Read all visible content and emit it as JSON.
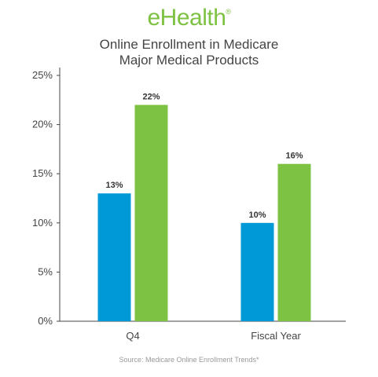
{
  "logo": {
    "text": "eHealth",
    "mark": "®",
    "color": "#7dc242"
  },
  "chart_data": {
    "type": "bar",
    "title": [
      "Online Enrollment in Medicare",
      "Major Medical Products"
    ],
    "categories": [
      "Q4",
      "Fiscal Year"
    ],
    "series": [
      {
        "values": [
          13,
          10
        ],
        "labels": [
          "13%",
          "10%"
        ],
        "color": "#0099d8"
      },
      {
        "values": [
          22,
          16
        ],
        "labels": [
          "22%",
          "16%"
        ],
        "color": "#7dc242"
      }
    ],
    "ylim": [
      0,
      25
    ],
    "yticks": [
      0,
      5,
      10,
      15,
      20,
      25
    ],
    "ytick_labels": [
      "0%",
      "5%",
      "10%",
      "15%",
      "20%",
      "25%"
    ],
    "grid": false,
    "legend": "none"
  },
  "source": "Source: Medicare Online Enrollment Trends*"
}
